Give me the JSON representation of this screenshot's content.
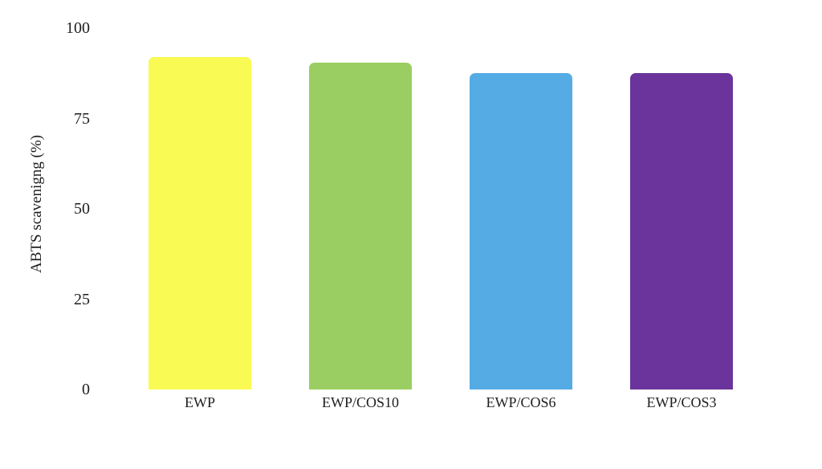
{
  "page": {
    "background_color": "#ffffff",
    "text_color": "#1e1e1e"
  },
  "chart_data": {
    "type": "bar",
    "title": "",
    "xlabel": "",
    "ylabel": "ABTS scavenigng (%)",
    "categories": [
      "EWP",
      "EWP/COS10",
      "EWP/COS6",
      "EWP/COS3"
    ],
    "values": [
      92,
      90.5,
      87.5,
      87.5
    ],
    "bar_colors": [
      "#FAFA55",
      "#9BCE62",
      "#55ACE5",
      "#6A349C"
    ],
    "yticks": [
      0,
      25,
      50,
      75,
      100
    ],
    "ylim": [
      0,
      100
    ],
    "grid": false,
    "axis_lines": false,
    "legend_position": "none"
  }
}
